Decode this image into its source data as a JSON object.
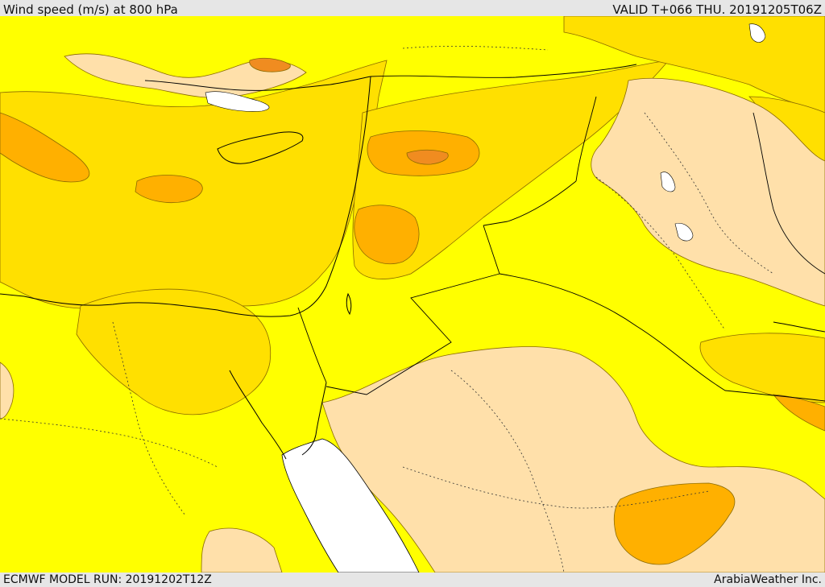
{
  "header": {
    "title": "Wind speed (m/s) at 800 hPa",
    "valid_time": "VALID T+066 THU. 20191205T06Z"
  },
  "footer": {
    "model_run": "ECMWF MODEL RUN: 20191202T12Z",
    "credit": "ArabiaWeather Inc."
  },
  "colors": {
    "sea_white": "#ffffff",
    "band_light": "#ffe0aa",
    "band_yellow": "#ffff00",
    "band_gold": "#ffe000",
    "band_orange": "#ffb000",
    "band_dark_orange": "#f08c20",
    "border": "#000000"
  }
}
